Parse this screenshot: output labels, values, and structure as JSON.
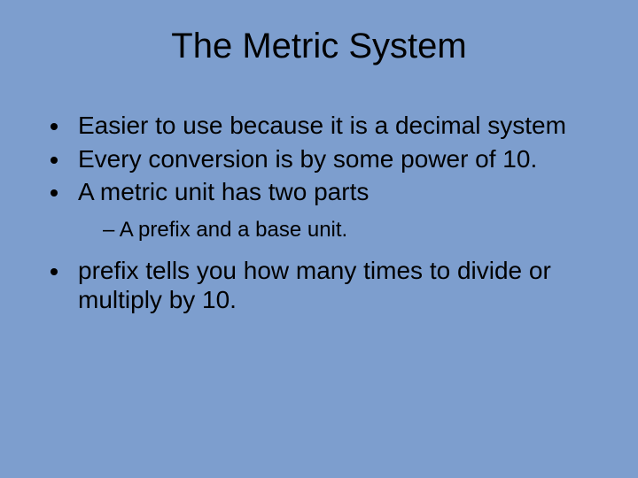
{
  "background_color": "#7d9ece",
  "text_color": "#000000",
  "title": {
    "text": "The Metric System",
    "fontsize": 40,
    "align": "center"
  },
  "bullets": {
    "level1_fontsize": 28,
    "level2_fontsize": 24,
    "items": [
      {
        "text": "Easier to use because it is a decimal system",
        "level": 1
      },
      {
        "text": "Every conversion is by some power of 10.",
        "level": 1
      },
      {
        "text": "A metric unit has two parts",
        "level": 1
      },
      {
        "text": "A prefix and a base unit.",
        "level": 2
      },
      {
        "text": "prefix tells you how many times to divide or multiply by 10.",
        "level": 1
      }
    ]
  }
}
